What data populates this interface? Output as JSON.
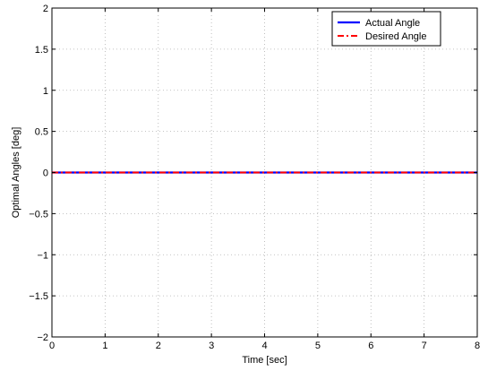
{
  "chart_data": {
    "type": "line",
    "xlabel": "Time [sec]",
    "ylabel": "Optimal  Angles [deg]",
    "xlim": [
      0,
      8
    ],
    "ylim": [
      -2,
      2
    ],
    "x_ticks": [
      0,
      1,
      2,
      3,
      4,
      5,
      6,
      7,
      8
    ],
    "x_tick_labels": [
      "0",
      "1",
      "2",
      "3",
      "4",
      "5",
      "6",
      "7",
      "8"
    ],
    "y_ticks": [
      -2,
      -1.5,
      -1,
      -0.5,
      0,
      0.5,
      1,
      1.5,
      2
    ],
    "y_tick_labels": [
      "−2",
      "−1.5",
      "−1",
      "−0.5",
      "0",
      "0.5",
      "1",
      "1.5",
      "2"
    ],
    "grid": true,
    "legend_position": "top-right",
    "series": [
      {
        "name": "Actual Angle",
        "color": "#0000ff",
        "style": "solid",
        "x": [
          0,
          0.5,
          1,
          1.5,
          2,
          2.5,
          3,
          3.5,
          4,
          4.5,
          5,
          5.5,
          6,
          6.5,
          7,
          7.5,
          8
        ],
        "y": [
          0,
          0,
          0,
          0,
          0,
          0,
          0,
          0,
          0,
          0,
          0,
          0,
          0,
          0,
          0,
          0,
          0
        ]
      },
      {
        "name": "Desired Angle",
        "color": "#ff0000",
        "style": "dash-dot",
        "x": [
          0,
          0.5,
          1,
          1.5,
          2,
          2.5,
          3,
          3.5,
          4,
          4.5,
          5,
          5.5,
          6,
          6.5,
          7,
          7.5,
          8
        ],
        "y": [
          0,
          0,
          0,
          0,
          0,
          0,
          0,
          0,
          0,
          0,
          0,
          0,
          0,
          0,
          0,
          0,
          0
        ]
      }
    ]
  }
}
